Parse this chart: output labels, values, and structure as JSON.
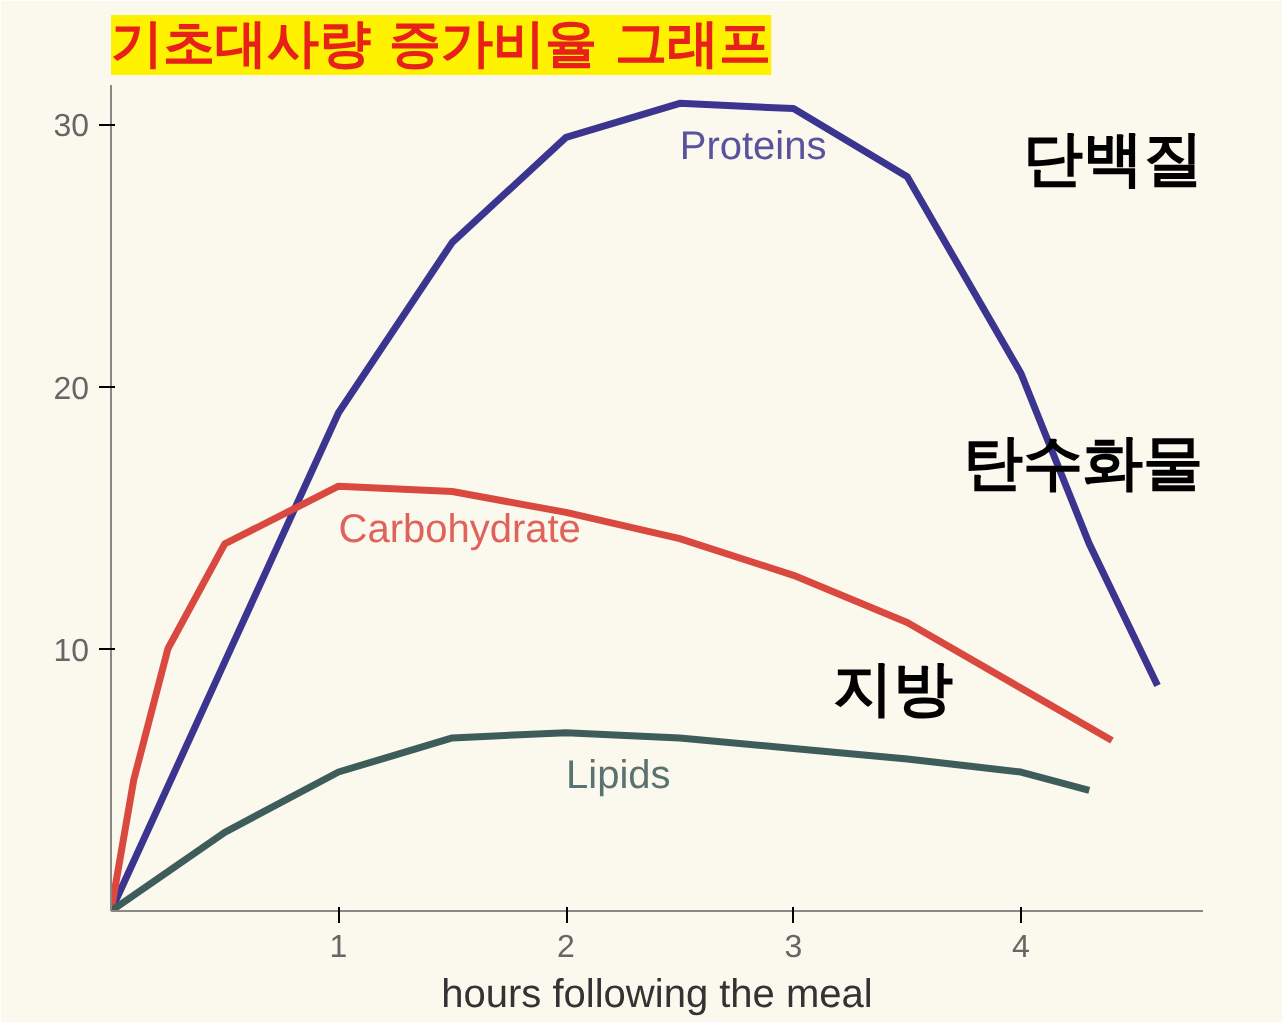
{
  "chart_data": {
    "type": "line",
    "title": "기초대사량 증가비율 그래프",
    "xlabel": "hours following the meal",
    "xlim": [
      0,
      4.8
    ],
    "ylim": [
      0,
      31.5
    ],
    "xticks": [
      1,
      2,
      3,
      4
    ],
    "yticks": [
      10,
      20,
      30
    ],
    "grid": false,
    "legend": false,
    "marker": "none",
    "line_style": "solid",
    "series": [
      {
        "name": "Proteins",
        "color": "#3b3590",
        "x": [
          0,
          0.5,
          1,
          1.5,
          2,
          2.5,
          3,
          3.5,
          4,
          4.3,
          4.6
        ],
        "values": [
          0,
          9.5,
          19,
          25.5,
          29.5,
          30.8,
          30.6,
          28,
          20.5,
          14,
          8.6
        ]
      },
      {
        "name": "Carbohydrate",
        "color": "#d9493f",
        "x": [
          0,
          0.1,
          0.25,
          0.5,
          1,
          1.5,
          2,
          2.5,
          3,
          3.5,
          4,
          4.4
        ],
        "values": [
          0,
          5,
          10,
          14,
          16.2,
          16,
          15.2,
          14.2,
          12.8,
          11,
          8.5,
          6.5
        ]
      },
      {
        "name": "Lipids",
        "color": "#3d5c5a",
        "x": [
          0,
          0.5,
          1,
          1.5,
          2,
          2.5,
          3,
          3.5,
          4,
          4.3
        ],
        "values": [
          0,
          3,
          5.3,
          6.6,
          6.8,
          6.6,
          6.2,
          5.8,
          5.3,
          4.6
        ]
      }
    ],
    "annotations": [
      "단백질",
      "탄수화물",
      "지방"
    ]
  }
}
